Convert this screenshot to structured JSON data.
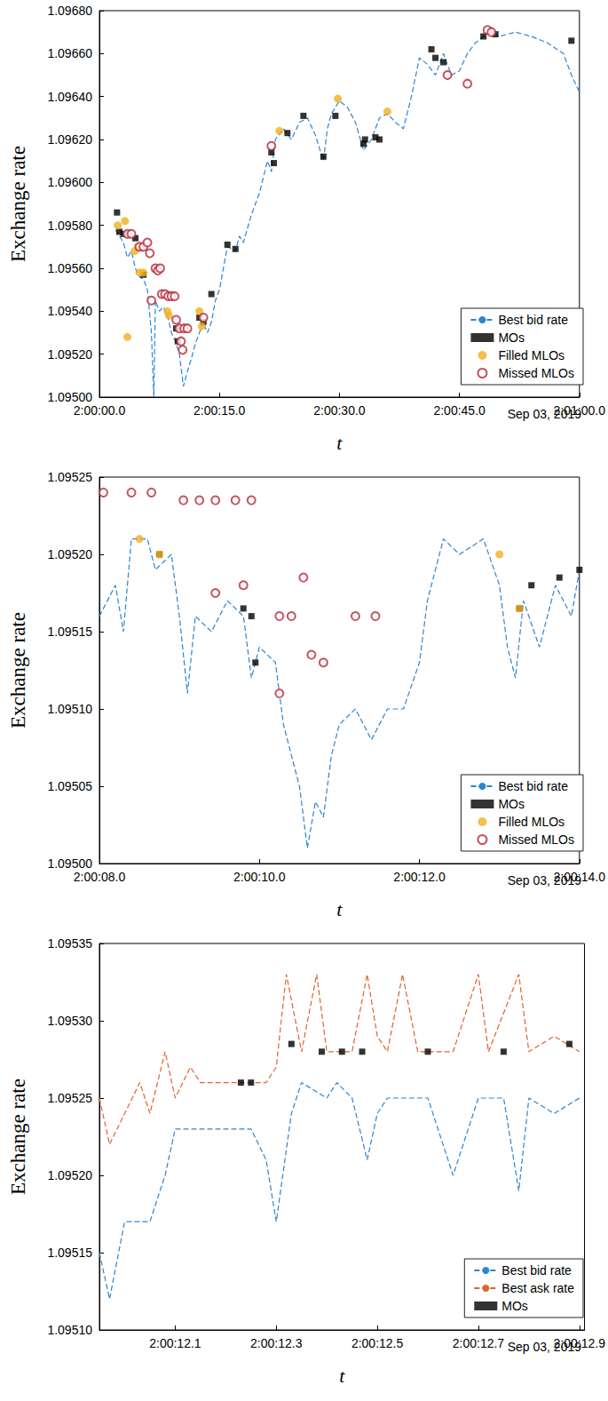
{
  "chart_data": [
    {
      "type": "line",
      "x_label": "t",
      "y_label": "Exchange rate",
      "annotation": "Sep 03, 2019",
      "legend": "lower right",
      "grid": false,
      "xlim": [
        0,
        60
      ],
      "xticks": [
        {
          "value": 0,
          "label": "2:00:00.0"
        },
        {
          "value": 15,
          "label": "2:00:15.0"
        },
        {
          "value": 30,
          "label": "2:00:30.0"
        },
        {
          "value": 45,
          "label": "2:00:45.0"
        },
        {
          "value": 60,
          "label": "2:01:00.0"
        }
      ],
      "ylim": [
        1.095,
        1.0968
      ],
      "yticks": [
        {
          "value": 1.095,
          "label": "1.09500"
        },
        {
          "value": 1.0952,
          "label": "1.09520"
        },
        {
          "value": 1.0954,
          "label": "1.09540"
        },
        {
          "value": 1.0956,
          "label": "1.09560"
        },
        {
          "value": 1.0958,
          "label": "1.09580"
        },
        {
          "value": 1.096,
          "label": "1.09600"
        },
        {
          "value": 1.0962,
          "label": "1.09620"
        },
        {
          "value": 1.0964,
          "label": "1.09640"
        },
        {
          "value": 1.0966,
          "label": "1.09660"
        },
        {
          "value": 1.0968,
          "label": "1.09680"
        }
      ],
      "series": [
        {
          "name": "Best bid rate",
          "type": "line",
          "line_style": "dashed",
          "color": "#2b85d0",
          "x": [
            2,
            2.5,
            3,
            3.5,
            4,
            4.5,
            5,
            5.5,
            6,
            6.5,
            6.8,
            7,
            7.5,
            8,
            8.5,
            9,
            9.5,
            10,
            10.5,
            11,
            11.5,
            12,
            12.5,
            13,
            13.5,
            14,
            14.5,
            15,
            15.5,
            16,
            17,
            17.5,
            18,
            19,
            20,
            21,
            21.5,
            22,
            23,
            24,
            25,
            26,
            27,
            28,
            28.5,
            29,
            30,
            31,
            32,
            33,
            34,
            35,
            36,
            37,
            38,
            39,
            40,
            41,
            42,
            43,
            44,
            45,
            46,
            47,
            48,
            49,
            50,
            52,
            54,
            56,
            58,
            59,
            60
          ],
          "values": [
            1.09578,
            1.09575,
            1.09572,
            1.09565,
            1.09568,
            1.0956,
            1.09556,
            1.09555,
            1.0955,
            1.0953,
            1.095,
            1.09545,
            1.0954,
            1.09542,
            1.09538,
            1.0953,
            1.09526,
            1.0952,
            1.09505,
            1.09512,
            1.09518,
            1.09525,
            1.0953,
            1.09535,
            1.0953,
            1.09535,
            1.09545,
            1.0955,
            1.0956,
            1.0957,
            1.09568,
            1.09575,
            1.09572,
            1.09585,
            1.09595,
            1.0961,
            1.09605,
            1.0962,
            1.09625,
            1.0962,
            1.09628,
            1.0963,
            1.09622,
            1.0961,
            1.09625,
            1.09632,
            1.09638,
            1.09635,
            1.09628,
            1.09615,
            1.0962,
            1.0963,
            1.09632,
            1.09628,
            1.09625,
            1.0964,
            1.09658,
            1.09655,
            1.0965,
            1.0966,
            1.0965,
            1.09652,
            1.0966,
            1.09665,
            1.09668,
            1.0967,
            1.09668,
            1.0967,
            1.09668,
            1.09665,
            1.0966,
            1.0965,
            1.09642
          ]
        },
        {
          "name": "MOs",
          "type": "scatter",
          "marker": "square",
          "color": "#000000",
          "x": [
            2.2,
            2.5,
            3,
            4.5,
            5.5,
            9.6,
            9.8,
            12.5,
            13,
            14,
            16,
            17,
            21.5,
            21.8,
            23.5,
            25.5,
            28,
            29.5,
            33,
            33.2,
            34.5,
            35,
            41.5,
            42,
            43,
            48,
            49.5,
            59
          ],
          "values": [
            1.09586,
            1.09577,
            1.09576,
            1.09574,
            1.09557,
            1.09532,
            1.09526,
            1.09537,
            1.09535,
            1.09548,
            1.09571,
            1.09569,
            1.09614,
            1.09609,
            1.09623,
            1.09631,
            1.09612,
            1.09631,
            1.09618,
            1.0962,
            1.09621,
            1.0962,
            1.09662,
            1.09658,
            1.09656,
            1.09668,
            1.09669,
            1.09666
          ]
        },
        {
          "name": "Filled MLOs",
          "type": "scatter",
          "marker": "circle",
          "color": "#f0b021",
          "x": [
            2.3,
            3.2,
            3.5,
            4.4,
            4.8,
            5,
            5.5,
            8.5,
            8.7,
            12.5,
            12.8,
            22.5,
            29.8,
            36
          ],
          "values": [
            1.0958,
            1.09582,
            1.09528,
            1.09568,
            1.0957,
            1.09558,
            1.09558,
            1.0954,
            1.09538,
            1.0954,
            1.09533,
            1.09624,
            1.09639,
            1.09633
          ]
        },
        {
          "name": "Missed MLOs",
          "type": "scatter",
          "marker": "open_circle",
          "color": "#b52a3a",
          "x": [
            3.5,
            4,
            5,
            5.5,
            6,
            6.3,
            6.5,
            7,
            7.3,
            7.6,
            7.8,
            8.2,
            8.6,
            9,
            9.4,
            9.6,
            10,
            10.2,
            10.4,
            10.6,
            11,
            13,
            21.5,
            43.5,
            46,
            48.5,
            49
          ],
          "values": [
            1.09576,
            1.09576,
            1.0957,
            1.0957,
            1.09572,
            1.09567,
            1.09545,
            1.0956,
            1.09559,
            1.0956,
            1.09548,
            1.09548,
            1.09547,
            1.09547,
            1.09547,
            1.09536,
            1.09532,
            1.09526,
            1.09522,
            1.09532,
            1.09532,
            1.09537,
            1.09617,
            1.0965,
            1.09646,
            1.09671,
            1.0967
          ]
        }
      ]
    },
    {
      "type": "line",
      "x_label": "t",
      "y_label": "Exchange rate",
      "annotation": "Sep 03, 2019",
      "legend": "lower right",
      "grid": false,
      "xlim": [
        8,
        14
      ],
      "xticks": [
        {
          "value": 8,
          "label": "2:00:08.0"
        },
        {
          "value": 10,
          "label": "2:00:10.0"
        },
        {
          "value": 12,
          "label": "2:00:12.0"
        },
        {
          "value": 14,
          "label": "2:00:14.0"
        }
      ],
      "ylim": [
        1.095,
        1.09525
      ],
      "yticks": [
        {
          "value": 1.095,
          "label": "1.09500"
        },
        1.09505,
        {
          "value": 1.0951,
          "label": "1.09510"
        },
        1.09515,
        {
          "value": 1.0952,
          "label": "1.09520"
        },
        1.09525
      ],
      "series": [
        {
          "name": "Best bid rate",
          "type": "line",
          "line_style": "dashed",
          "color": "#2b85d0",
          "x": [
            8,
            8.2,
            8.3,
            8.4,
            8.6,
            8.7,
            8.9,
            9.0,
            9.1,
            9.2,
            9.4,
            9.6,
            9.8,
            9.9,
            10.0,
            10.2,
            10.3,
            10.4,
            10.5,
            10.6,
            10.7,
            10.8,
            10.9,
            11.0,
            11.2,
            11.4,
            11.6,
            11.8,
            12.0,
            12.1,
            12.3,
            12.5,
            12.8,
            13.0,
            13.1,
            13.2,
            13.3,
            13.5,
            13.7,
            13.9,
            14.0
          ],
          "values": [
            1.09516,
            1.09518,
            1.09515,
            1.09521,
            1.09521,
            1.09519,
            1.0952,
            1.09516,
            1.09511,
            1.09516,
            1.09515,
            1.09517,
            1.09516,
            1.09512,
            1.09514,
            1.09513,
            1.09509,
            1.09507,
            1.09505,
            1.09501,
            1.09504,
            1.09503,
            1.09507,
            1.09509,
            1.0951,
            1.09508,
            1.0951,
            1.0951,
            1.09513,
            1.09517,
            1.09521,
            1.0952,
            1.09521,
            1.09518,
            1.09514,
            1.09512,
            1.09517,
            1.09514,
            1.09518,
            1.09516,
            1.09519
          ]
        },
        {
          "name": "MOs",
          "type": "scatter",
          "marker": "square",
          "color": "#000000",
          "x": [
            8.75,
            9.8,
            9.9,
            9.95,
            13.25,
            13.4,
            13.75,
            14.0
          ],
          "values": [
            1.0952,
            1.095165,
            1.09516,
            1.09513,
            1.095165,
            1.09518,
            1.095185,
            1.09519
          ]
        },
        {
          "name": "Filled MLOs",
          "type": "scatter",
          "marker": "circle",
          "color": "#f0b021",
          "x": [
            8.5,
            8.75,
            13.0,
            13.25
          ],
          "values": [
            1.09521,
            1.0952,
            1.0952,
            1.095165
          ]
        },
        {
          "name": "Missed MLOs",
          "type": "scatter",
          "marker": "open_circle",
          "color": "#b52a3a",
          "x": [
            8.05,
            8.4,
            8.65,
            9.05,
            9.25,
            9.45,
            9.7,
            9.9,
            9.45,
            9.8,
            10.25,
            10.4,
            10.55,
            10.65,
            10.8,
            10.25,
            11.2,
            11.45
          ],
          "values": [
            1.09524,
            1.09524,
            1.09524,
            1.095235,
            1.095235,
            1.095235,
            1.095235,
            1.095235,
            1.095175,
            1.09518,
            1.09516,
            1.09516,
            1.095185,
            1.095135,
            1.09513,
            1.09511,
            1.09516,
            1.09516
          ]
        }
      ]
    },
    {
      "type": "line",
      "x_label": "t",
      "y_label": "Exchange rate",
      "annotation": "Sep 03, 2019",
      "legend": "lower right",
      "grid": false,
      "xlim": [
        11.95,
        12.91
      ],
      "xticks": [
        {
          "value": 12.1,
          "label": "2:00:12.1"
        },
        {
          "value": 12.3,
          "label": "2:00:12.3"
        },
        {
          "value": 12.5,
          "label": "2:00:12.5"
        },
        {
          "value": 12.7,
          "label": "2:00:12.7"
        },
        {
          "value": 12.9,
          "label": "2:00:12.9"
        }
      ],
      "ylim": [
        1.0951,
        1.09535
      ],
      "yticks": [
        {
          "value": 1.0951,
          "label": "1.09510"
        },
        1.09515,
        {
          "value": 1.0952,
          "label": "1.09520"
        },
        1.09525,
        {
          "value": 1.0953,
          "label": "1.09530"
        },
        1.09535
      ],
      "series": [
        {
          "name": "Best bid rate",
          "type": "line",
          "line_style": "dashed",
          "color": "#2b85d0",
          "x": [
            11.95,
            11.97,
            12.0,
            12.05,
            12.08,
            12.1,
            12.15,
            12.2,
            12.25,
            12.28,
            12.3,
            12.33,
            12.35,
            12.4,
            12.42,
            12.45,
            12.48,
            12.5,
            12.52,
            12.6,
            12.65,
            12.7,
            12.75,
            12.78,
            12.8,
            12.85,
            12.9
          ],
          "values": [
            1.09515,
            1.09512,
            1.09517,
            1.09517,
            1.0952,
            1.09523,
            1.09523,
            1.09523,
            1.09523,
            1.09521,
            1.09517,
            1.09524,
            1.09526,
            1.09525,
            1.09526,
            1.09525,
            1.09521,
            1.09524,
            1.09525,
            1.09525,
            1.0952,
            1.09525,
            1.09525,
            1.09519,
            1.09525,
            1.09524,
            1.09525
          ]
        },
        {
          "name": "Best ask rate",
          "type": "line",
          "line_style": "dashed",
          "color": "#e0622e",
          "x": [
            11.95,
            11.97,
            12.0,
            12.03,
            12.05,
            12.08,
            12.1,
            12.13,
            12.15,
            12.2,
            12.25,
            12.28,
            12.3,
            12.32,
            12.35,
            12.38,
            12.4,
            12.45,
            12.48,
            12.5,
            12.52,
            12.55,
            12.58,
            12.65,
            12.7,
            12.72,
            12.78,
            12.8,
            12.85,
            12.9
          ],
          "values": [
            1.09525,
            1.09522,
            1.09524,
            1.09526,
            1.09524,
            1.09528,
            1.09525,
            1.09527,
            1.09526,
            1.09526,
            1.09526,
            1.09526,
            1.09527,
            1.09533,
            1.09528,
            1.09533,
            1.09528,
            1.09528,
            1.09533,
            1.09529,
            1.09528,
            1.09533,
            1.09528,
            1.09528,
            1.09533,
            1.09528,
            1.09533,
            1.09528,
            1.09529,
            1.09528
          ]
        },
        {
          "name": "MOs",
          "type": "scatter",
          "marker": "square",
          "color": "#000000",
          "x": [
            12.23,
            12.25,
            12.33,
            12.39,
            12.43,
            12.47,
            12.6,
            12.75,
            12.88
          ],
          "values": [
            1.09526,
            1.09526,
            1.095285,
            1.09528,
            1.09528,
            1.09528,
            1.09528,
            1.09528,
            1.095285
          ]
        }
      ]
    }
  ]
}
